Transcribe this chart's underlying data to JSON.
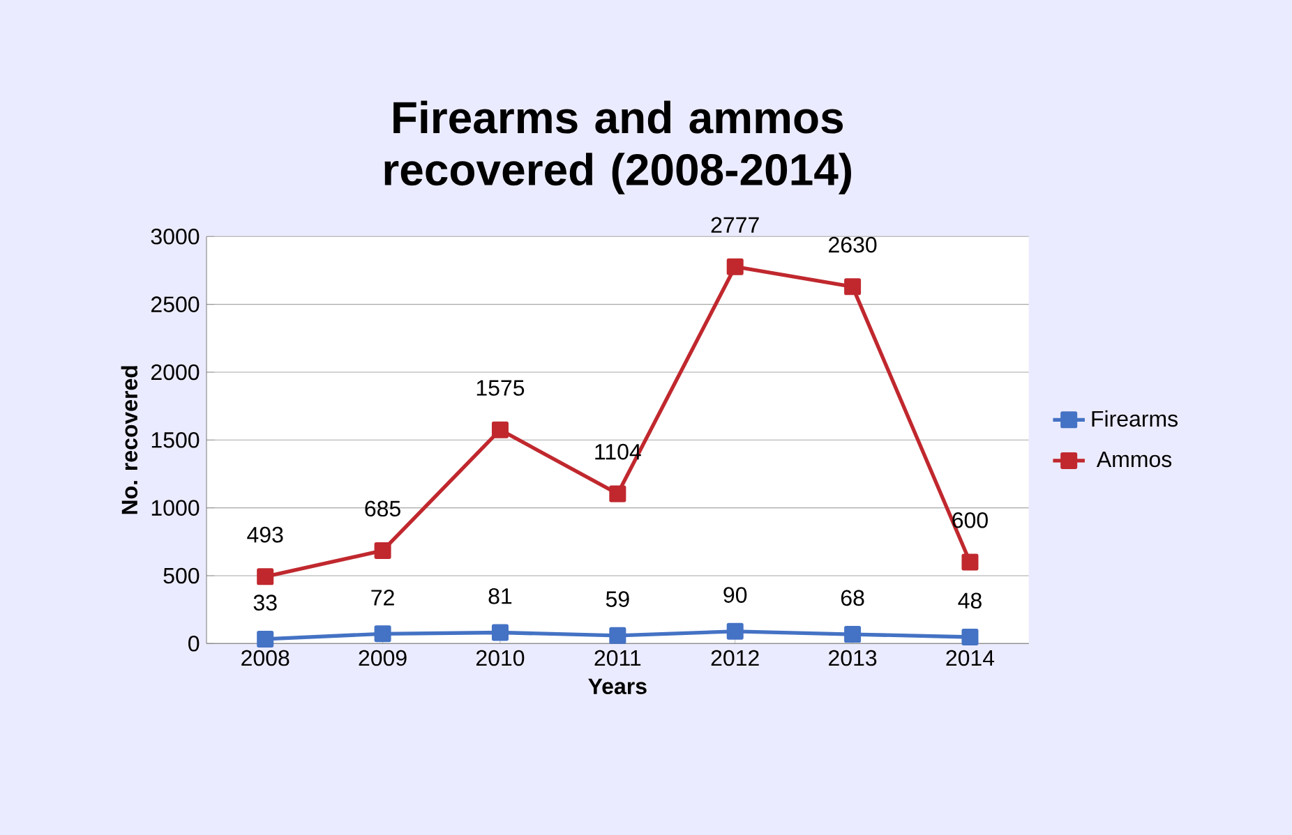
{
  "chart_data": {
    "type": "line",
    "title": "Firearms and ammos recovered (2008-2014)",
    "xlabel": "Years",
    "ylabel": "No. recovered",
    "categories": [
      "2008",
      "2009",
      "2010",
      "2011",
      "2012",
      "2013",
      "2014"
    ],
    "series": [
      {
        "name": "Firearms",
        "color": "#4472c4",
        "values": [
          33,
          72,
          81,
          59,
          90,
          68,
          48
        ]
      },
      {
        "name": "Ammos",
        "color": "#c0282e",
        "values": [
          493,
          685,
          1575,
          1104,
          2777,
          2630,
          600
        ]
      }
    ],
    "ylim": [
      0,
      3000
    ],
    "yticks": [
      0,
      500,
      1000,
      1500,
      2000,
      2500,
      3000
    ],
    "grid": "y",
    "legend": "right",
    "marker": "square",
    "line_style": "solid",
    "data_labels": true
  }
}
